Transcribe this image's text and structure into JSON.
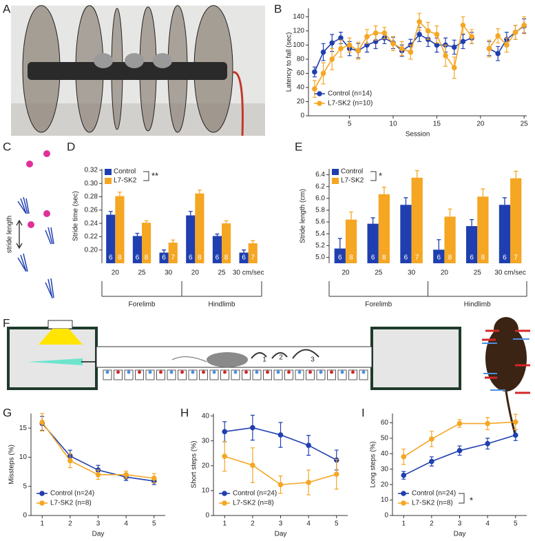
{
  "chart_data": [
    {
      "type": "line",
      "panel": "B",
      "xlabel": "Session",
      "ylabel": "Latency to fall (sec)",
      "x": [
        1,
        2,
        3,
        4,
        5,
        6,
        7,
        8,
        9,
        10,
        11,
        12,
        13,
        14,
        15,
        16,
        17,
        18,
        19,
        20,
        21,
        22,
        23,
        24,
        25
      ],
      "xlim": [
        0.3,
        25.3
      ],
      "xticks": [
        5,
        10,
        15,
        20,
        25
      ],
      "ylim": [
        0,
        152
      ],
      "yticks": [
        0,
        20,
        40,
        60,
        80,
        100,
        120,
        140
      ],
      "legend": "lower left",
      "series": [
        {
          "name": "Control (n=14)",
          "color": "#1f3fb0",
          "values": [
            62,
            90,
            103,
            110,
            95,
            92,
            100,
            105,
            110,
            103,
            92,
            100,
            115,
            108,
            100,
            100,
            97,
            105,
            110,
            null,
            95,
            88,
            108,
            118,
            127
          ],
          "errors": [
            7,
            12,
            12,
            8,
            10,
            10,
            10,
            10,
            8,
            8,
            8,
            8,
            10,
            10,
            10,
            10,
            10,
            10,
            8,
            null,
            10,
            10,
            10,
            10,
            10
          ]
        },
        {
          "name": "L7-SK2 (n=10)",
          "color": "#f5a623",
          "values": [
            38,
            60,
            80,
            95,
            100,
            92,
            112,
            117,
            117,
            102,
            95,
            90,
            133,
            120,
            115,
            85,
            68,
            128,
            112,
            null,
            95,
            113,
            100,
            118,
            128
          ],
          "errors": [
            12,
            15,
            15,
            12,
            10,
            12,
            10,
            10,
            8,
            10,
            10,
            10,
            12,
            12,
            12,
            15,
            15,
            12,
            10,
            null,
            12,
            10,
            10,
            10,
            12
          ]
        }
      ]
    },
    {
      "type": "bar",
      "panel": "D",
      "ylabel": "Stride time (sec)",
      "categories": [
        "20",
        "25",
        "30",
        "20",
        "25",
        "30 cm/sec"
      ],
      "groups": [
        "Forelimb",
        "Hindlimb"
      ],
      "ylim": [
        0.18,
        0.322
      ],
      "yticks": [
        {
          "value": 0.2,
          "label": "0.20"
        },
        0.22,
        0.24,
        0.26,
        0.28,
        {
          "value": 0.3,
          "label": "0.30"
        },
        0.32
      ],
      "significance": "**",
      "series": [
        {
          "name": "Control",
          "color": "#1f3fb0",
          "values": [
            0.253,
            0.221,
            0.196,
            0.252,
            0.221,
            0.196
          ],
          "errors": [
            0.005,
            0.004,
            0.004,
            0.006,
            0.003,
            0.004
          ],
          "n": [
            6,
            6,
            6,
            6,
            6,
            6
          ]
        },
        {
          "name": "L7-SK2",
          "color": "#f5a623",
          "values": [
            0.281,
            0.241,
            0.211,
            0.285,
            0.24,
            0.21
          ],
          "errors": [
            0.006,
            0.003,
            0.004,
            0.005,
            0.004,
            0.004
          ],
          "n": [
            8,
            8,
            7,
            8,
            8,
            7
          ]
        }
      ]
    },
    {
      "type": "bar",
      "panel": "E",
      "ylabel": "Stride length (cm)",
      "categories": [
        "20",
        "25",
        "30",
        "20",
        "25",
        "30 cm/sec"
      ],
      "groups": [
        "Forelimb",
        "Hindlimb"
      ],
      "ylim": [
        4.9,
        6.5
      ],
      "yticks": [
        {
          "value": 5,
          "label": "5.0"
        },
        5.2,
        5.4,
        5.6,
        5.8,
        {
          "value": 6,
          "label": "6.0"
        },
        6.2,
        6.4
      ],
      "significance": "*",
      "series": [
        {
          "name": "Control",
          "color": "#1f3fb0",
          "values": [
            5.15,
            5.57,
            5.89,
            5.13,
            5.53,
            5.89
          ],
          "errors": [
            0.17,
            0.1,
            0.12,
            0.17,
            0.11,
            0.12
          ],
          "n": [
            6,
            6,
            6,
            6,
            6,
            6
          ]
        },
        {
          "name": "L7-SK2",
          "color": "#f5a623",
          "values": [
            5.64,
            6.07,
            6.35,
            5.69,
            6.03,
            6.34
          ],
          "errors": [
            0.13,
            0.12,
            0.12,
            0.13,
            0.13,
            0.12
          ],
          "n": [
            8,
            8,
            7,
            8,
            8,
            7
          ]
        }
      ]
    },
    {
      "type": "line",
      "panel": "G",
      "xlabel": "Day",
      "ylabel": "Missteps (%)",
      "x": [
        1,
        2,
        3,
        4,
        5
      ],
      "xlim": [
        0.6,
        5.4
      ],
      "xticks": [
        1,
        2,
        3,
        4,
        5
      ],
      "ylim": [
        0,
        17.5
      ],
      "yticks": [
        0,
        5,
        10,
        15
      ],
      "legend": "lower left",
      "series": [
        {
          "name": "Control (n=24)",
          "color": "#1f3fb0",
          "values": [
            15.8,
            10.2,
            7.8,
            6.6,
            5.9
          ],
          "errors": [
            1.2,
            1,
            0.8,
            0.6,
            0.6
          ]
        },
        {
          "name": "L7-SK2 (n=8)",
          "color": "#f5a623",
          "values": [
            16,
            9.4,
            7,
            7,
            6.4
          ],
          "errors": [
            1.5,
            1.2,
            0.8,
            0.6,
            0.8
          ]
        }
      ]
    },
    {
      "type": "line",
      "panel": "H",
      "xlabel": "Day",
      "ylabel": "Short steps (%)",
      "x": [
        1,
        2,
        3,
        4,
        5
      ],
      "xlim": [
        0.6,
        5.4
      ],
      "xticks": [
        1,
        2,
        3,
        4,
        5
      ],
      "ylim": [
        0,
        41
      ],
      "yticks": [
        0,
        10,
        20,
        30,
        40
      ],
      "legend": "lower left",
      "series": [
        {
          "name": "Control (n=24)",
          "color": "#1f3fb0",
          "values": [
            33.7,
            35.3,
            32.4,
            28.2,
            22.3
          ],
          "errors": [
            4,
            5,
            5,
            4,
            4
          ]
        },
        {
          "name": "L7-SK2 (n=8)",
          "color": "#f5a623",
          "values": [
            23.8,
            20.2,
            12.4,
            13.3,
            16.6
          ],
          "errors": [
            6,
            7,
            3.5,
            5,
            6
          ]
        }
      ]
    },
    {
      "type": "line",
      "panel": "I",
      "xlabel": "Day",
      "ylabel": "Long steps (%)",
      "x": [
        1,
        2,
        3,
        4,
        5
      ],
      "xlim": [
        0.6,
        5.4
      ],
      "xticks": [
        1,
        2,
        3,
        4,
        5
      ],
      "ylim": [
        0,
        66
      ],
      "yticks": [
        0,
        10,
        20,
        30,
        40,
        50,
        60
      ],
      "legend": "lower left",
      "significance": "*",
      "series": [
        {
          "name": "Control (n=24)",
          "color": "#1f3fb0",
          "values": [
            26,
            35,
            42,
            46.5,
            52
          ],
          "errors": [
            2.5,
            3,
            3,
            3.5,
            3.5
          ]
        },
        {
          "name": "L7-SK2 (n=8)",
          "color": "#f5a623",
          "values": [
            38,
            49.5,
            59.5,
            59.5,
            60.5
          ],
          "errors": [
            5,
            5,
            2.5,
            4,
            5
          ]
        }
      ]
    }
  ],
  "diagrams": {
    "A": {
      "panel": "A"
    },
    "C": {
      "panel": "C",
      "label": "stride length"
    },
    "F": {
      "panel": "F",
      "steps": [
        "1",
        "2",
        "3"
      ]
    }
  }
}
